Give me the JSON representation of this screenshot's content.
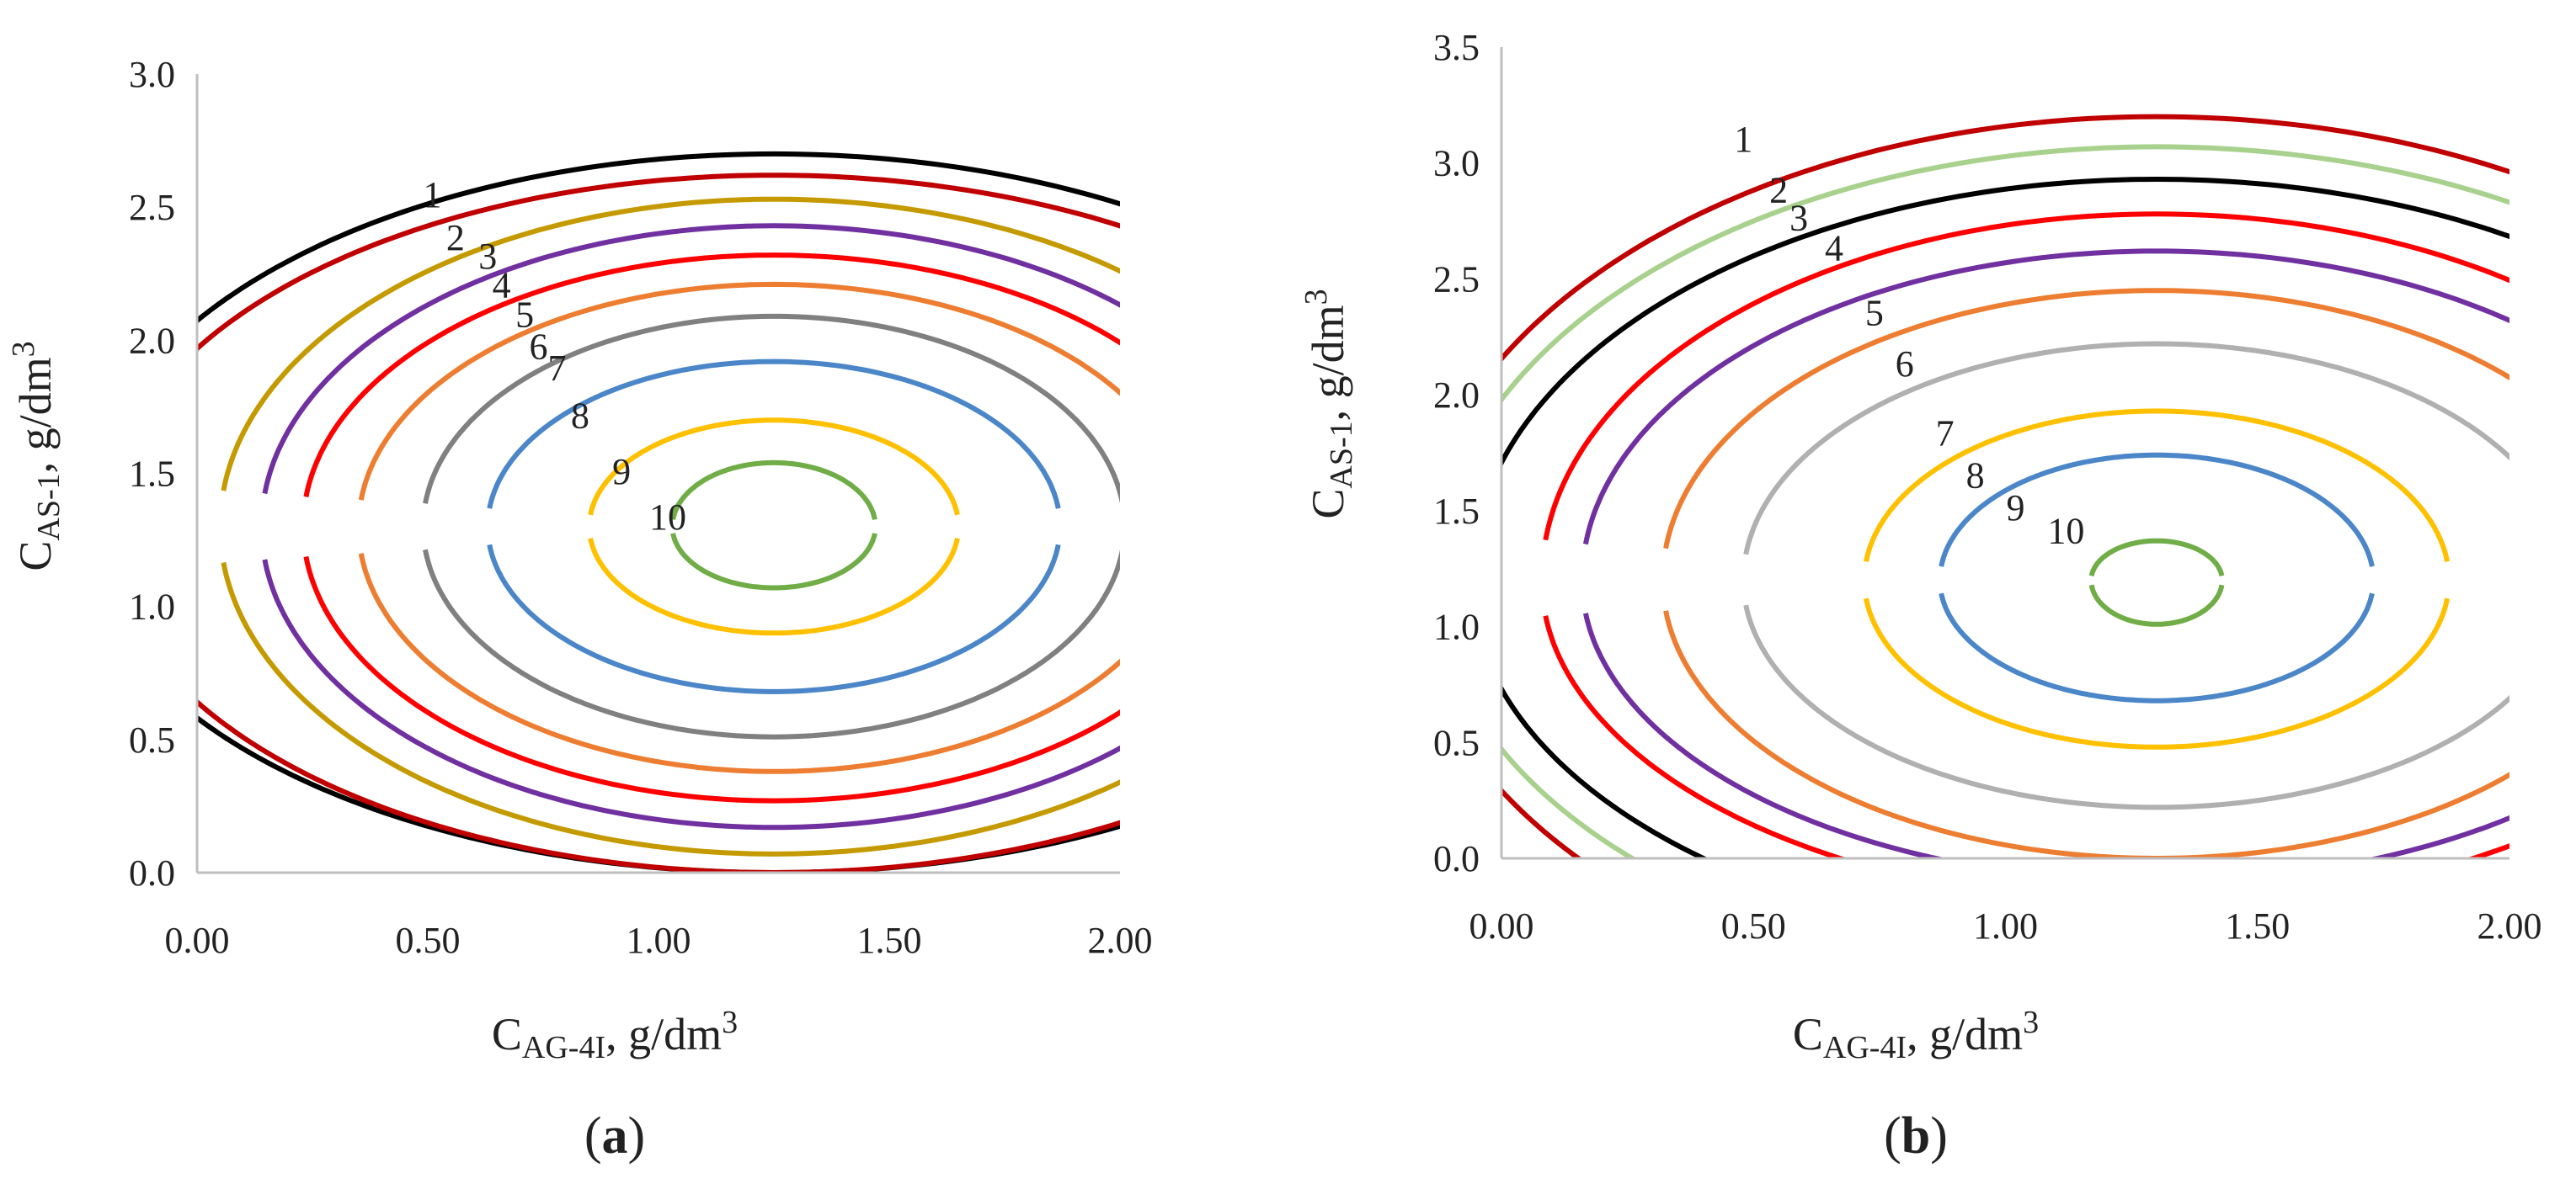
{
  "chart_data": [
    {
      "type": "contour",
      "panel_label": {
        "open": "(",
        "letter": "a",
        "close": ")"
      },
      "title": "",
      "xlabel": {
        "main": "C",
        "sub": "AG-4I",
        "rest": ", g/dm",
        "sup": "3"
      },
      "ylabel": {
        "main": "C",
        "sub": "AS-1",
        "rest": ", g/dm",
        "sup": "3"
      },
      "xlim": [
        0,
        2.0
      ],
      "ylim": [
        0,
        3.0
      ],
      "x_ticks": [
        "0.00",
        "0.50",
        "1.00",
        "1.50",
        "2.00"
      ],
      "y_ticks": [
        "0.0",
        "0.5",
        "1.0",
        "1.5",
        "2.0",
        "2.5",
        "3.0"
      ],
      "center": [
        1.25,
        1.3
      ],
      "contours": [
        {
          "label": "1",
          "color": "#000000",
          "rx": 1.5,
          "top": 2.7,
          "bottom": 0.0,
          "label_pos": [
            0.51,
            2.5
          ]
        },
        {
          "label": "2",
          "color": "#c00000",
          "rx": 1.45,
          "top": 2.62,
          "bottom": 0.0,
          "label_pos": [
            0.56,
            2.34
          ]
        },
        {
          "label": "3",
          "color": "#c49a00",
          "rx": 1.2,
          "top": 2.53,
          "bottom": 0.07,
          "label_pos": [
            0.63,
            2.27
          ]
        },
        {
          "label": "4",
          "color": "#7030a0",
          "rx": 1.11,
          "top": 2.43,
          "bottom": 0.17,
          "label_pos": [
            0.66,
            2.16
          ]
        },
        {
          "label": "5",
          "color": "#ff0000",
          "rx": 1.02,
          "top": 2.32,
          "bottom": 0.27,
          "label_pos": [
            0.71,
            2.05
          ]
        },
        {
          "label": "6",
          "color": "#ed7d31",
          "rx": 0.9,
          "top": 2.21,
          "bottom": 0.38,
          "label_pos": [
            0.74,
            1.93
          ]
        },
        {
          "label": "7",
          "color": "#808080",
          "rx": 0.76,
          "top": 2.09,
          "bottom": 0.51,
          "label_pos": [
            0.78,
            1.85
          ]
        },
        {
          "label": "8",
          "color": "#4a86c8",
          "rx": 0.62,
          "top": 1.92,
          "bottom": 0.68,
          "label_pos": [
            0.83,
            1.67
          ]
        },
        {
          "label": "9",
          "color": "#ffc000",
          "rx": 0.4,
          "top": 1.7,
          "bottom": 0.9,
          "label_pos": [
            0.92,
            1.46
          ]
        },
        {
          "label": "10",
          "color": "#70ad47",
          "rx": 0.22,
          "top": 1.54,
          "bottom": 1.07,
          "label_pos": [
            1.02,
            1.29
          ]
        }
      ]
    },
    {
      "type": "contour",
      "panel_label": {
        "open": "(",
        "letter": "b",
        "close": ")"
      },
      "title": "",
      "xlabel": {
        "main": "C",
        "sub": "AG-4I",
        "rest": ", g/dm",
        "sup": "3"
      },
      "ylabel": {
        "main": "C",
        "sub": "AS-1",
        "rest": ", g/dm",
        "sup": "3"
      },
      "xlim": [
        0,
        2.0
      ],
      "ylim": [
        0,
        3.5
      ],
      "x_ticks": [
        "0.00",
        "0.50",
        "1.00",
        "1.50",
        "2.00"
      ],
      "y_ticks": [
        "0.0",
        "0.5",
        "1.0",
        "1.5",
        "2.0",
        "2.5",
        "3.0",
        "3.5"
      ],
      "center": [
        1.3,
        1.2
      ],
      "contours": [
        {
          "label": "1",
          "color": "#c00000",
          "rx": 1.48,
          "top": 3.2,
          "bottom": -0.7,
          "label_pos": [
            0.48,
            3.05
          ]
        },
        {
          "label": "2",
          "color": "#a9d18e",
          "rx": 1.43,
          "top": 3.07,
          "bottom": -0.55,
          "label_pos": [
            0.55,
            2.83
          ]
        },
        {
          "label": "3",
          "color": "#000000",
          "rx": 1.36,
          "top": 2.93,
          "bottom": -0.4,
          "label_pos": [
            0.59,
            2.71
          ]
        },
        {
          "label": "4",
          "color": "#ff0000",
          "rx": 1.22,
          "top": 2.78,
          "bottom": -0.2,
          "label_pos": [
            0.66,
            2.58
          ]
        },
        {
          "label": "5",
          "color": "#7030a0",
          "rx": 1.14,
          "top": 2.62,
          "bottom": -0.1,
          "label_pos": [
            0.74,
            2.3
          ]
        },
        {
          "label": "6",
          "color": "#ed7d31",
          "rx": 0.98,
          "top": 2.45,
          "bottom": 0.0,
          "label_pos": [
            0.8,
            2.08
          ]
        },
        {
          "label": "7",
          "color": "#b0b0b0",
          "rx": 0.82,
          "top": 2.22,
          "bottom": 0.22,
          "label_pos": [
            0.88,
            1.78
          ]
        },
        {
          "label": "8",
          "color": "#ffc000",
          "rx": 0.58,
          "top": 1.93,
          "bottom": 0.48,
          "label_pos": [
            0.94,
            1.6
          ]
        },
        {
          "label": "9",
          "color": "#4a86c8",
          "rx": 0.43,
          "top": 1.74,
          "bottom": 0.68,
          "label_pos": [
            1.02,
            1.46
          ]
        },
        {
          "label": "10",
          "color": "#70ad47",
          "rx": 0.13,
          "top": 1.37,
          "bottom": 1.01,
          "label_pos": [
            1.12,
            1.36
          ]
        }
      ]
    }
  ]
}
